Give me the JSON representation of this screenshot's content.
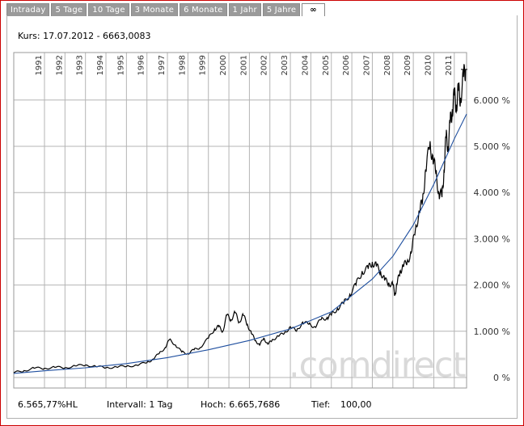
{
  "tabs": [
    "Intraday",
    "5 Tage",
    "10 Tage",
    "3 Monate",
    "6 Monate",
    "1 Jahr",
    "5 Jahre",
    "∞"
  ],
  "active_tab_index": 7,
  "header": {
    "kurs": "Kurs: 17.07.2012 - 6663,0083"
  },
  "watermark": ".comdirect",
  "footer": {
    "performance": "6.565,77%HL",
    "intervall": "Intervall: 1 Tag",
    "hoch": "Hoch: 6.665,7686",
    "tief_label": "Tief:",
    "tief_value": "100,00"
  },
  "colors": {
    "frame": "#cc0000",
    "tab_bg": "#9a9a9a",
    "grid": "#b4b4b4",
    "price_line": "#000000",
    "trend_line": "#1f4f9f",
    "watermark": "#d9d9d9"
  },
  "chart_data": {
    "type": "line",
    "x_ticks": [
      "1991",
      "1992",
      "1993",
      "1994",
      "1995",
      "1996",
      "1997",
      "1998",
      "1999",
      "2000",
      "2001",
      "2002",
      "2003",
      "2004",
      "2005",
      "2006",
      "2007",
      "2008",
      "2009",
      "2010",
      "2011"
    ],
    "y_ticks": [
      "0 %",
      "1.000 %",
      "2.000 %",
      "3.000 %",
      "4.000 %",
      "5.000 %",
      "6.000 %"
    ],
    "ylim": [
      0,
      7000
    ],
    "xlim": [
      1990.5,
      2012.6
    ],
    "grid": true,
    "series": [
      {
        "style": "price",
        "x": [
          1990.5,
          1991.0,
          1991.5,
          1992.0,
          1992.5,
          1993.0,
          1993.5,
          1994.0,
          1994.5,
          1995.0,
          1995.5,
          1996.0,
          1996.5,
          1997.0,
          1997.3,
          1997.6,
          1997.9,
          1998.1,
          1998.4,
          1998.7,
          1999.0,
          1999.3,
          1999.6,
          2000.0,
          2000.3,
          2000.5,
          2000.7,
          2000.9,
          2001.1,
          2001.3,
          2001.5,
          2001.7,
          2001.9,
          2002.1,
          2002.3,
          2002.5,
          2002.7,
          2002.9,
          2003.1,
          2003.4,
          2003.7,
          2004.0,
          2004.3,
          2004.6,
          2004.9,
          2005.2,
          2005.5,
          2005.8,
          2006.0,
          2006.3,
          2006.6,
          2006.9,
          2007.2,
          2007.5,
          2007.8,
          2008.0,
          2008.2,
          2008.4,
          2008.6,
          2008.8,
          2009.0,
          2009.1,
          2009.2,
          2009.35,
          2009.5,
          2009.7,
          2009.9,
          2010.1,
          2010.3,
          2010.45,
          2010.6,
          2010.8,
          2010.95,
          2011.1,
          2011.25,
          2011.4,
          2011.5,
          2011.6,
          2011.7,
          2011.8,
          2011.9,
          2012.0,
          2012.1,
          2012.2,
          2012.3,
          2012.45,
          2012.55
        ],
        "values": [
          100,
          150,
          200,
          200,
          220,
          210,
          250,
          270,
          240,
          210,
          230,
          240,
          270,
          320,
          400,
          520,
          650,
          820,
          700,
          550,
          520,
          600,
          650,
          850,
          1050,
          1100,
          1000,
          1350,
          1250,
          1400,
          1200,
          1350,
          1150,
          950,
          800,
          700,
          850,
          720,
          800,
          900,
          950,
          1100,
          1000,
          1200,
          1150,
          1100,
          1250,
          1300,
          1350,
          1500,
          1600,
          1800,
          2000,
          2300,
          2350,
          2500,
          2400,
          2300,
          2100,
          2050,
          2000,
          1800,
          2000,
          2300,
          2400,
          2500,
          2700,
          3200,
          3600,
          3800,
          4500,
          5000,
          4800,
          4400,
          4000,
          3900,
          4500,
          5200,
          5000,
          5500,
          5800,
          6100,
          5900,
          6200,
          6050,
          6500,
          6663
        ]
      },
      {
        "style": "trend",
        "x": [
          1990.5,
          1992.0,
          1994.0,
          1996.0,
          1998.0,
          2000.0,
          2002.0,
          2004.0,
          2006.0,
          2008.0,
          2009.0,
          2010.0,
          2011.0,
          2012.0,
          2012.6
        ],
        "values": [
          90,
          145,
          210,
          300,
          430,
          600,
          800,
          1050,
          1420,
          2130,
          2620,
          3300,
          4180,
          5160,
          5700
        ]
      }
    ]
  }
}
